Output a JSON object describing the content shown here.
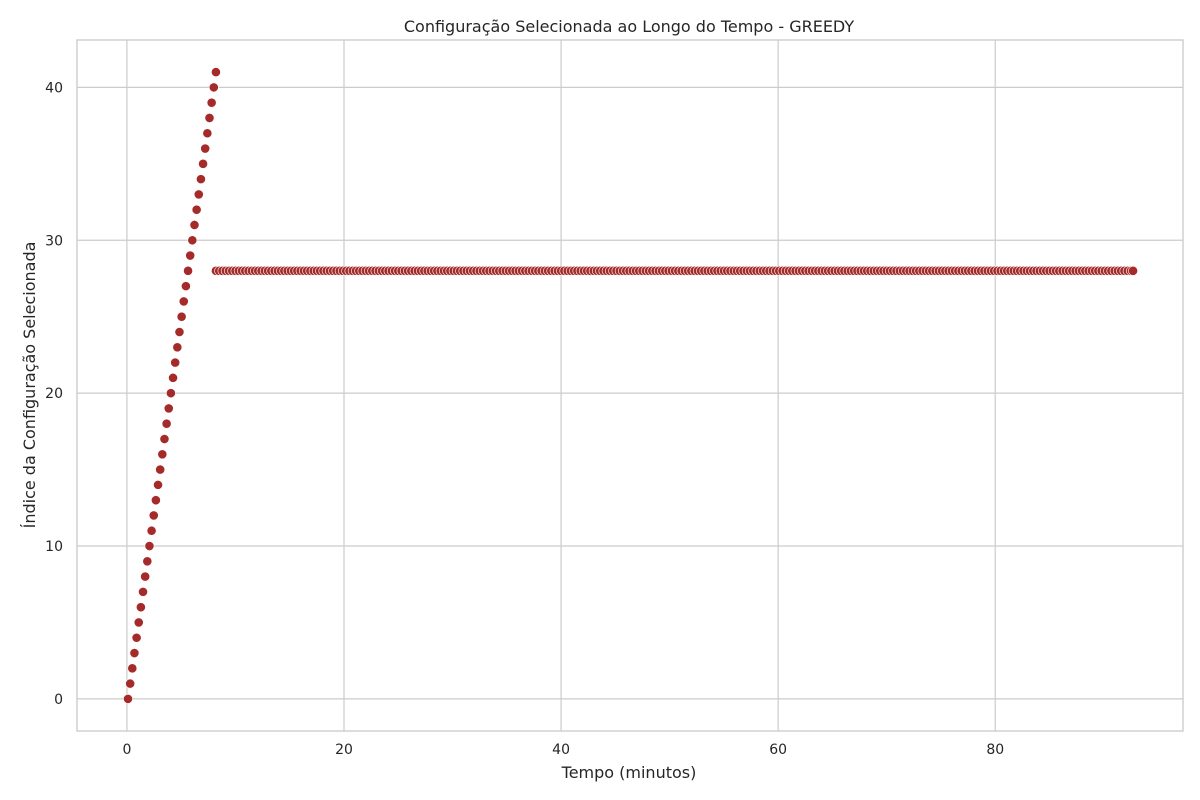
{
  "chart_data": {
    "type": "scatter",
    "title": "Configuração Selecionada ao Longo do Tempo - GREEDY",
    "xlabel": "Tempo (minutos)",
    "ylabel": "Índice da Configuração Selecionada",
    "xlim": [
      -4.6,
      97.3
    ],
    "ylim": [
      -2.1,
      43.1
    ],
    "xticks": [
      0,
      20,
      40,
      60,
      80
    ],
    "yticks": [
      0,
      10,
      20,
      30,
      40
    ],
    "grid": true,
    "marker_color": "#a52a2a",
    "series": [
      {
        "ramp": {
          "x_start": 0.1,
          "x_end": 8.2,
          "y_start": 0,
          "y_end": 41
        },
        "plateau": {
          "x_start": 8.2,
          "x_end": 92.7,
          "y": 28,
          "step": 0.3
        }
      }
    ]
  }
}
